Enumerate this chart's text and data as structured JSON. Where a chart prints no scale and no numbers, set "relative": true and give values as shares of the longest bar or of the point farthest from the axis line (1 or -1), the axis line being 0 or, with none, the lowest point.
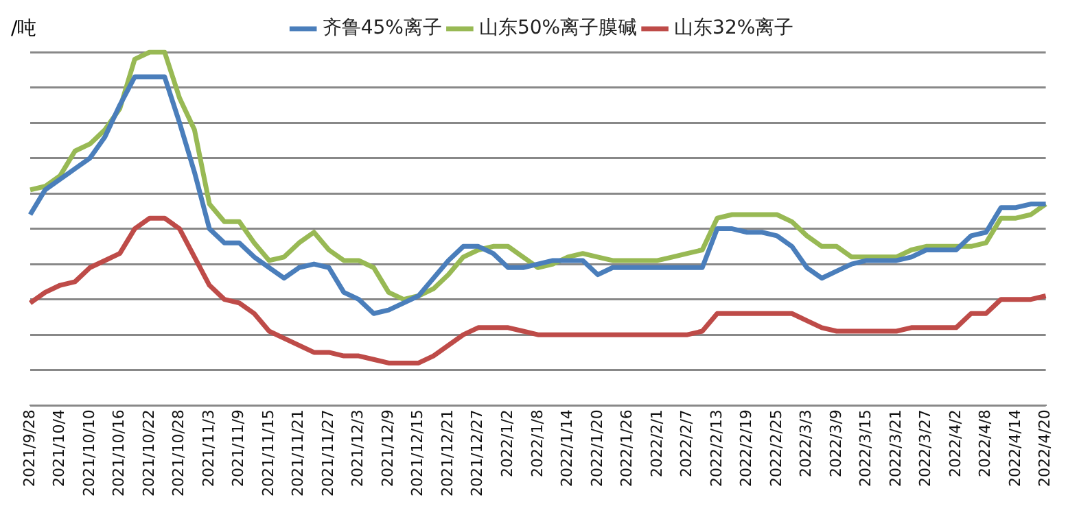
{
  "chart_data": {
    "type": "line",
    "relative": true,
    "ylabel": "/吨",
    "legend": "top",
    "grid": "y",
    "marker": "none",
    "line_style": "solid",
    "categories": [
      "2021/9/28",
      null,
      "2021/10/4",
      null,
      "2021/10/10",
      null,
      "2021/10/16",
      null,
      "2021/10/22",
      null,
      "2021/10/28",
      null,
      "2021/11/3",
      null,
      "2021/11/9",
      null,
      "2021/11/15",
      null,
      "2021/11/21",
      null,
      "2021/11/27",
      null,
      "2021/12/3",
      null,
      "2021/12/9",
      null,
      "2021/12/15",
      null,
      "2021/12/21",
      null,
      "2021/12/27",
      null,
      "2022/1/2",
      null,
      "2022/1/8",
      null,
      "2022/1/14",
      null,
      "2022/1/20",
      null,
      "2022/1/26",
      null,
      "2022/2/1",
      null,
      "2022/2/7",
      null,
      "2022/2/13",
      null,
      "2022/2/19",
      null,
      "2022/2/25",
      null,
      "2022/3/3",
      null,
      "2022/3/9",
      null,
      "2022/3/15",
      null,
      "2022/3/21",
      null,
      "2022/3/27",
      null,
      "2022/4/2",
      null,
      "2022/4/8",
      null,
      "2022/4/14",
      null,
      "2022/4/20"
    ],
    "series": [
      {
        "name": "齐鲁45%离子",
        "color": "#4a7ebb",
        "values": [
          0.54,
          0.61,
          0.64,
          0.67,
          0.7,
          0.76,
          0.85,
          0.93,
          0.93,
          0.93,
          0.8,
          0.66,
          0.5,
          0.46,
          0.46,
          0.42,
          0.39,
          0.36,
          0.39,
          0.4,
          0.39,
          0.32,
          0.3,
          0.26,
          0.27,
          0.29,
          0.31,
          0.36,
          0.41,
          0.45,
          0.45,
          0.43,
          0.39,
          0.39,
          0.4,
          0.41,
          0.41,
          0.41,
          0.37,
          0.39,
          0.39,
          0.39,
          0.39,
          0.39,
          0.39,
          0.39,
          0.5,
          0.5,
          0.49,
          0.49,
          0.48,
          0.45,
          0.39,
          0.36,
          0.38,
          0.4,
          0.41,
          0.41,
          0.41,
          0.42,
          0.44,
          0.44,
          0.44,
          0.48,
          0.49,
          0.56,
          0.56,
          0.57,
          0.57
        ]
      },
      {
        "name": "山东50%离子膜碱",
        "color": "#98b954",
        "values": [
          0.61,
          0.62,
          0.65,
          0.72,
          0.74,
          0.78,
          0.84,
          0.98,
          1.0,
          1.0,
          0.87,
          0.78,
          0.57,
          0.52,
          0.52,
          0.46,
          0.41,
          0.42,
          0.46,
          0.49,
          0.44,
          0.41,
          0.41,
          0.39,
          0.32,
          0.3,
          0.31,
          0.33,
          0.37,
          0.42,
          0.44,
          0.45,
          0.45,
          0.42,
          0.39,
          0.4,
          0.42,
          0.43,
          0.42,
          0.41,
          0.41,
          0.41,
          0.41,
          0.42,
          0.43,
          0.44,
          0.53,
          0.54,
          0.54,
          0.54,
          0.54,
          0.52,
          0.48,
          0.45,
          0.45,
          0.42,
          0.42,
          0.42,
          0.42,
          0.44,
          0.45,
          0.45,
          0.45,
          0.45,
          0.46,
          0.53,
          0.53,
          0.54,
          0.57
        ]
      },
      {
        "name": "山东32%离子",
        "color": "#be4b48",
        "values": [
          0.29,
          0.32,
          0.34,
          0.35,
          0.39,
          0.41,
          0.43,
          0.5,
          0.53,
          0.53,
          0.5,
          0.42,
          0.34,
          0.3,
          0.29,
          0.26,
          0.21,
          0.19,
          0.17,
          0.15,
          0.15,
          0.14,
          0.14,
          0.13,
          0.12,
          0.12,
          0.12,
          0.14,
          0.17,
          0.2,
          0.22,
          0.22,
          0.22,
          0.21,
          0.2,
          0.2,
          0.2,
          0.2,
          0.2,
          0.2,
          0.2,
          0.2,
          0.2,
          0.2,
          0.2,
          0.21,
          0.26,
          0.26,
          0.26,
          0.26,
          0.26,
          0.26,
          0.24,
          0.22,
          0.21,
          0.21,
          0.21,
          0.21,
          0.21,
          0.22,
          0.22,
          0.22,
          0.22,
          0.26,
          0.26,
          0.3,
          0.3,
          0.3,
          0.31
        ]
      }
    ]
  }
}
